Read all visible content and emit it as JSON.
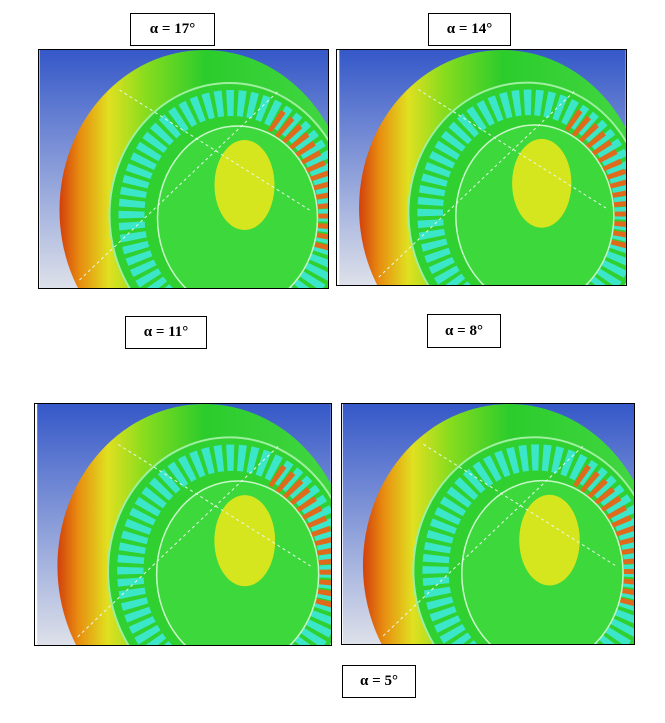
{
  "panels": [
    {
      "label": "α = 17°"
    },
    {
      "label": "α = 14°"
    },
    {
      "label": "α = 11°"
    },
    {
      "label": "α = 8°"
    },
    {
      "label": "α = 5°"
    }
  ]
}
